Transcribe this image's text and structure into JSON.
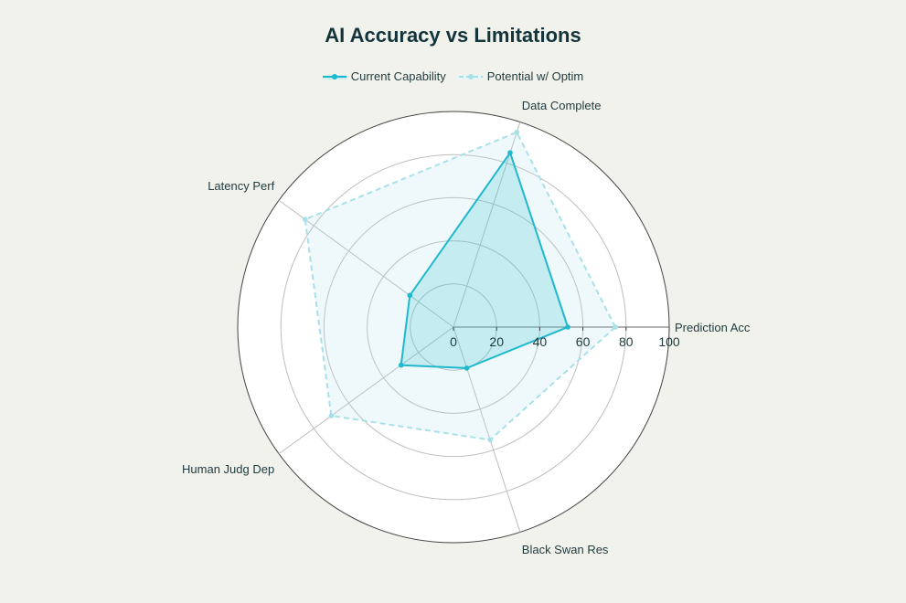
{
  "chart_data": {
    "type": "radar",
    "title": "AI Accuracy vs Limitations",
    "categories": [
      "Prediction Acc",
      "Data Complete",
      "Latency Perf",
      "Human Judg Dep",
      "Black Swan Res"
    ],
    "series": [
      {
        "name": "Current Capability",
        "values": [
          53,
          85,
          25,
          30,
          20
        ],
        "color": "#1fb8cd",
        "style": "solid"
      },
      {
        "name": "Potential w/ Optim",
        "values": [
          75,
          95,
          85,
          70,
          55
        ],
        "color": "#a8e0ea",
        "style": "dashed"
      }
    ],
    "radial_ticks": [
      "0",
      "20",
      "40",
      "60",
      "80",
      "100"
    ],
    "rlim": [
      0,
      100
    ],
    "legend": "top-center",
    "grid": true
  }
}
